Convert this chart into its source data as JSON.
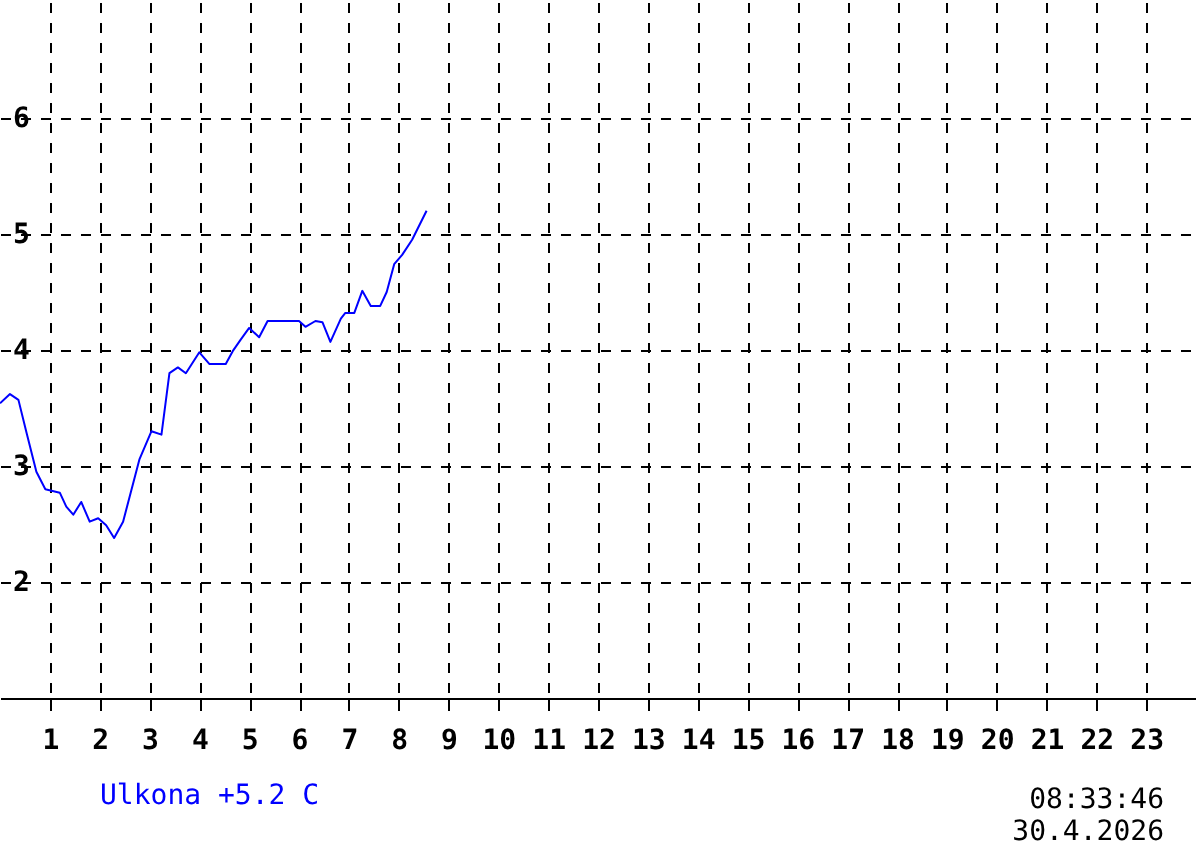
{
  "chart_data": {
    "type": "line",
    "xlim": [
      0,
      24
    ],
    "xticks": [
      1,
      2,
      3,
      4,
      5,
      6,
      7,
      8,
      9,
      10,
      11,
      12,
      13,
      14,
      15,
      16,
      17,
      18,
      19,
      20,
      21,
      22,
      23
    ],
    "ylim": [
      1,
      7
    ],
    "yticks": [
      2,
      3,
      4,
      5,
      6
    ],
    "grid": true,
    "line_style": "solid",
    "annotations": [
      "08:33:46",
      "30.4.2026"
    ],
    "x": [
      0,
      0.2,
      0.37,
      0.53,
      0.73,
      0.91,
      1.2,
      1.33,
      1.47,
      1.63,
      1.8,
      1.97,
      2.13,
      2.29,
      2.47,
      2.8,
      3.04,
      3.24,
      3.4,
      3.57,
      3.73,
      4,
      4.2,
      4.53,
      4.67,
      4.83,
      5,
      5.2,
      5.37,
      6,
      6.13,
      6.33,
      6.47,
      6.63,
      6.84,
      6.93,
      7.11,
      7.27,
      7.44,
      7.63,
      7.76,
      7.91,
      8.07,
      8.27,
      8.56
    ],
    "series": [
      {
        "name": "Ulkona +5.2 C",
        "color": "#0000ff",
        "values": [
          3.54,
          3.62,
          3.57,
          3.29,
          2.95,
          2.8,
          2.77,
          2.65,
          2.58,
          2.69,
          2.52,
          2.55,
          2.49,
          2.38,
          2.52,
          3.06,
          3.3,
          3.27,
          3.8,
          3.85,
          3.8,
          3.98,
          3.88,
          3.88,
          3.99,
          4.09,
          4.19,
          4.11,
          4.25,
          4.25,
          4.2,
          4.25,
          4.24,
          4.07,
          4.27,
          4.32,
          4.32,
          4.51,
          4.38,
          4.38,
          4.5,
          4.74,
          4.82,
          4.95,
          5.2
        ]
      }
    ]
  }
}
